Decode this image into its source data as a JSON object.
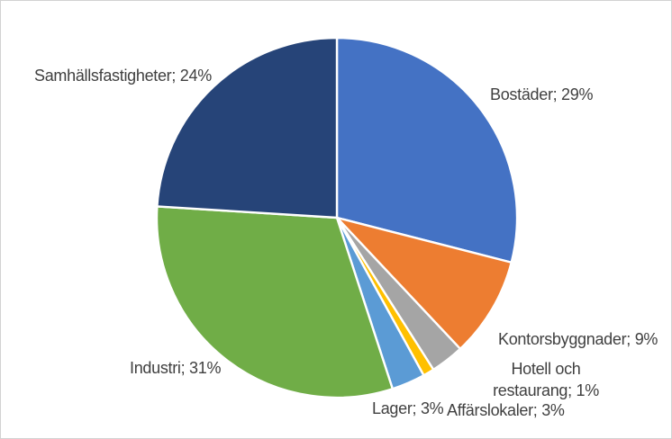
{
  "chart_data": {
    "type": "pie",
    "title": "",
    "legend": "none",
    "unit": "%",
    "categories": [
      "Bostäder",
      "Kontorsbyggnader",
      "Affärslokaler",
      "Hotell och restaurang",
      "Lager",
      "Industri",
      "Samhällsfastigheter"
    ],
    "values": [
      29,
      9,
      3,
      1,
      3,
      31,
      24
    ],
    "colors": [
      "#4472C4",
      "#ED7D31",
      "#A5A5A5",
      "#FFC000",
      "#5B9BD5",
      "#70AD47",
      "#264478"
    ],
    "labels": [
      "Bostäder; 29%",
      "Kontorsbyggnader; 9%",
      "Affärslokaler; 3%",
      "Hotell och restaurang; 1%",
      "Lager; 3%",
      "Industri; 31%",
      "Samhällsfastigheter; 24%"
    ],
    "start_angle_deg": 0,
    "direction": "clockwise",
    "separator_color": "#FFFFFF",
    "label_color": "#404040",
    "background": "#FFFFFF",
    "border_color": "#D2D2D2"
  }
}
